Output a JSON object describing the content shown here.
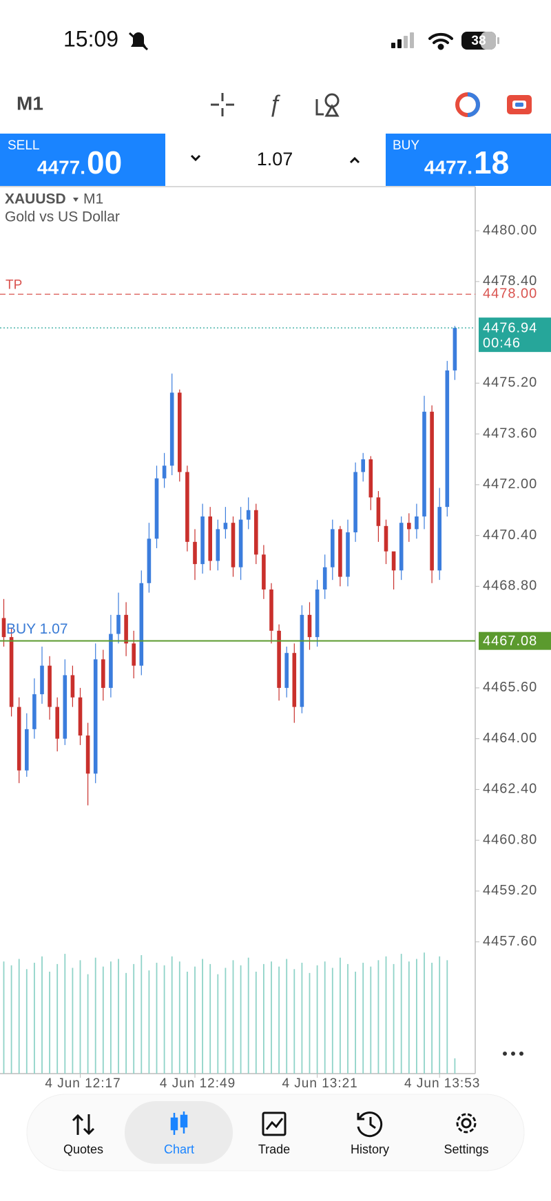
{
  "status_bar": {
    "time": "15:09",
    "battery": "38"
  },
  "toolbar": {
    "timeframe": "M1"
  },
  "trade_panel": {
    "sell_label": "SELL",
    "sell_price_main": "4477.",
    "sell_price_big": "00",
    "volume": "1.07",
    "buy_label": "BUY",
    "buy_price_main": "4477.",
    "buy_price_big": "18"
  },
  "chart_data": {
    "type": "candlestick",
    "symbol": "XAUUSD",
    "timeframe": "M1",
    "description": "Gold vs US Dollar",
    "up_color": "#3b7ddd",
    "down_color": "#c9302c",
    "volume_color": "#8fd3c8",
    "ylim": [
      4453.45,
      4481.39
    ],
    "yticks": [
      {
        "value": 4480.0,
        "label": "4480.00"
      },
      {
        "value": 4478.4,
        "label": "4478.40"
      },
      {
        "value": 4475.2,
        "label": "4475.20"
      },
      {
        "value": 4473.6,
        "label": "4473.60"
      },
      {
        "value": 4472.0,
        "label": "4472.00"
      },
      {
        "value": 4470.4,
        "label": "4470.40"
      },
      {
        "value": 4468.8,
        "label": "4468.80"
      },
      {
        "value": 4465.6,
        "label": "4465.60"
      },
      {
        "value": 4464.0,
        "label": "4464.00"
      },
      {
        "value": 4462.4,
        "label": "4462.40"
      },
      {
        "value": 4460.8,
        "label": "4460.80"
      },
      {
        "value": 4459.2,
        "label": "4459.20"
      },
      {
        "value": 4457.6,
        "label": "4457.60"
      }
    ],
    "price_lines": [
      {
        "name": "TP",
        "value": 4478.0,
        "label": "4478.00",
        "color": "#d9534f"
      },
      {
        "value": 4476.94,
        "label": "4476.94",
        "time": "00:46",
        "color": "#26a69a"
      },
      {
        "name": "BUY 1.07",
        "value": 4467.08,
        "label": "4467.08",
        "color": "#5b9a2e"
      }
    ],
    "categories": [
      null,
      null,
      null,
      null,
      null,
      null,
      null,
      null,
      null,
      null,
      "4 Jun 12:17",
      null,
      null,
      null,
      null,
      null,
      null,
      null,
      null,
      null,
      null,
      null,
      null,
      null,
      null,
      "4 Jun 12:49",
      null,
      null,
      null,
      null,
      null,
      null,
      null,
      null,
      null,
      null,
      null,
      null,
      null,
      null,
      null,
      "4 Jun 13:21",
      null,
      null,
      null,
      null,
      null,
      null,
      null,
      null,
      null,
      null,
      null,
      null,
      null,
      null,
      null,
      "4 Jun 13:53",
      null,
      null
    ],
    "open": [
      4467.8,
      4467.2,
      4465.0,
      4463.0,
      4464.3,
      4465.4,
      4466.3,
      4465.0,
      4464.0,
      4466.0,
      4465.3,
      4464.1,
      4462.9,
      4466.5,
      4465.6,
      4467.3,
      4467.9,
      4467.0,
      4466.3,
      4468.9,
      4470.3,
      4472.2,
      4472.6,
      4474.9,
      4472.4,
      4470.2,
      4469.5,
      4471.0,
      4469.6,
      4470.6,
      4470.8,
      4469.4,
      4470.9,
      4471.2,
      4469.8,
      4468.7,
      4467.4,
      4465.6,
      4466.7,
      4465.0,
      4467.9,
      4467.2,
      4468.7,
      4469.4,
      4470.6,
      4469.1,
      4470.5,
      4472.4,
      4472.8,
      4471.6,
      4470.7,
      4469.9,
      4469.3,
      4470.8,
      4470.6,
      4471.0,
      4474.3,
      4469.3,
      4471.3,
      4475.6
    ],
    "high": [
      4468.4,
      4467.5,
      4465.3,
      4464.8,
      4465.9,
      4466.9,
      4466.6,
      4465.3,
      4466.5,
      4466.3,
      4465.6,
      4464.5,
      4467.0,
      4466.8,
      4467.9,
      4468.6,
      4468.3,
      4467.4,
      4469.3,
      4470.8,
      4472.6,
      4473.0,
      4475.5,
      4475.0,
      4472.6,
      4470.6,
      4471.4,
      4471.3,
      4470.9,
      4471.3,
      4471.0,
      4471.3,
      4471.6,
      4471.4,
      4470.1,
      4468.9,
      4467.6,
      4466.9,
      4467.0,
      4468.2,
      4468.3,
      4469.0,
      4469.8,
      4470.9,
      4470.7,
      4470.9,
      4472.7,
      4473.0,
      4472.9,
      4471.8,
      4470.9,
      4469.7,
      4471.0,
      4471.1,
      4471.4,
      4474.8,
      4474.5,
      4471.9,
      4475.9,
      4477.0
    ],
    "low": [
      4466.9,
      4464.7,
      4462.6,
      4462.8,
      4464.0,
      4465.1,
      4464.6,
      4463.6,
      4463.8,
      4465.0,
      4463.8,
      4461.9,
      4462.6,
      4465.2,
      4465.3,
      4467.0,
      4466.6,
      4465.9,
      4466.0,
      4468.6,
      4470.0,
      4471.9,
      4472.3,
      4472.1,
      4469.9,
      4469.0,
      4469.2,
      4469.3,
      4469.3,
      4470.3,
      4469.1,
      4469.0,
      4470.6,
      4469.5,
      4468.4,
      4467.0,
      4465.2,
      4465.3,
      4464.5,
      4464.8,
      4466.8,
      4466.9,
      4468.4,
      4469.0,
      4468.8,
      4468.8,
      4470.2,
      4472.1,
      4471.2,
      4470.2,
      4469.5,
      4468.7,
      4469.0,
      4470.2,
      4470.3,
      4470.6,
      4468.9,
      4469.0,
      4471.0,
      4475.3
    ],
    "close": [
      4467.2,
      4465.0,
      4463.0,
      4464.3,
      4465.4,
      4466.3,
      4465.0,
      4464.0,
      4466.0,
      4465.3,
      4464.1,
      4462.9,
      4466.5,
      4465.6,
      4467.3,
      4467.9,
      4467.0,
      4466.3,
      4468.9,
      4470.3,
      4472.2,
      4472.6,
      4474.9,
      4472.4,
      4470.2,
      4469.5,
      4471.0,
      4469.6,
      4470.6,
      4470.8,
      4469.4,
      4470.9,
      4471.2,
      4469.8,
      4468.7,
      4467.4,
      4465.6,
      4466.7,
      4465.0,
      4467.9,
      4467.2,
      4468.7,
      4469.4,
      4470.6,
      4469.1,
      4470.5,
      4472.4,
      4472.8,
      4471.6,
      4470.7,
      4469.9,
      4469.3,
      4470.8,
      4470.6,
      4471.0,
      4474.3,
      4469.3,
      4471.3,
      4475.6,
      4476.94
    ],
    "volume": [
      88,
      85,
      90,
      82,
      87,
      92,
      80,
      86,
      94,
      83,
      89,
      78,
      91,
      84,
      88,
      90,
      79,
      86,
      93,
      81,
      87,
      85,
      92,
      88,
      80,
      84,
      90,
      86,
      78,
      83,
      89,
      85,
      91,
      80,
      86,
      88,
      84,
      90,
      82,
      87,
      79,
      85,
      88,
      83,
      91,
      86,
      80,
      87,
      84,
      89,
      92,
      86,
      94,
      88,
      90,
      95,
      87,
      92,
      89,
      12
    ],
    "volume_lim": [
      0,
      100
    ]
  },
  "nav": {
    "items": [
      "Quotes",
      "Chart",
      "Trade",
      "History",
      "Settings"
    ],
    "active": "Chart"
  }
}
